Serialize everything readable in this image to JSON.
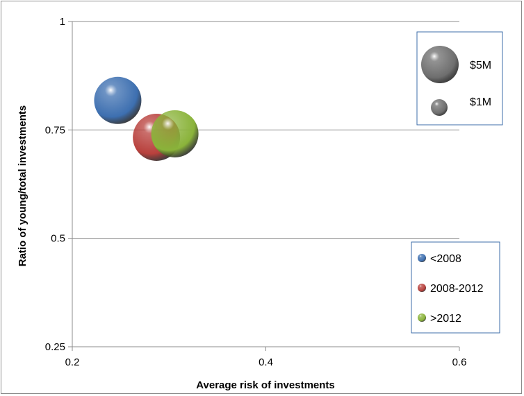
{
  "chart_data": {
    "type": "bubble",
    "xlabel": "Average risk of investments",
    "ylabel": "Ratio of young/total investments",
    "xlim": [
      0.2,
      0.6
    ],
    "ylim": [
      0.25,
      1
    ],
    "x_ticks": [
      "0.2",
      "0.4",
      "0.6"
    ],
    "y_ticks": [
      "0.25",
      "0.5",
      "0.75",
      "1"
    ],
    "grid": "horizontal",
    "series": [
      {
        "name": "<2008",
        "x": 0.247,
        "y": 0.818,
        "color": "#3d6fb0"
      },
      {
        "name": "2008-2012",
        "x": 0.287,
        "y": 0.733,
        "color": "#b8403c"
      },
      {
        "name": ">2012",
        "x": 0.306,
        "y": 0.741,
        "color": "#8ab33a"
      }
    ],
    "size_legend": [
      {
        "label": "$5M",
        "value": 5
      },
      {
        "label": "$1M",
        "value": 1
      }
    ],
    "legend_placement": "right"
  }
}
